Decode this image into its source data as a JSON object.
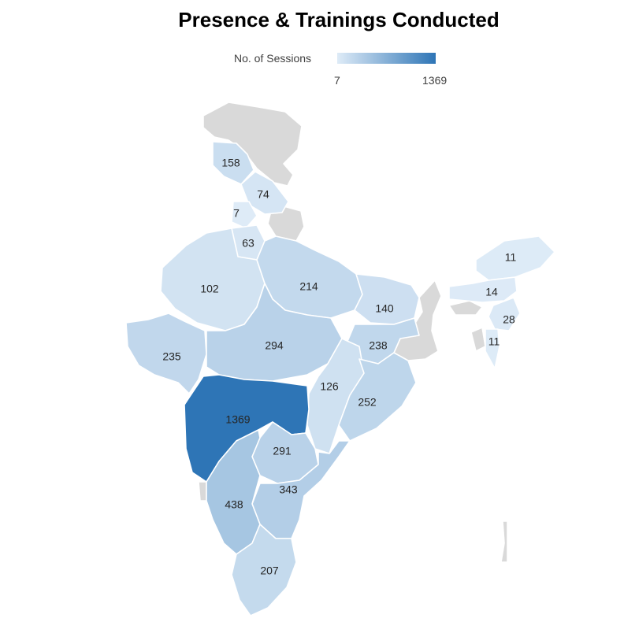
{
  "title": "Presence & Trainings Conducted",
  "legend": {
    "label": "No. of Sessions",
    "min": "7",
    "max": "1369",
    "min_color": "#deebf7",
    "max_color": "#2e75b6"
  },
  "no_data_color": "#d9d9d9",
  "chart_data": {
    "type": "choropleth",
    "metric": "No. of Sessions",
    "range": [
      7,
      1369
    ],
    "values": [
      {
        "label": "158",
        "value": 158
      },
      {
        "label": "74",
        "value": 74
      },
      {
        "label": "7",
        "value": 7
      },
      {
        "label": "63",
        "value": 63
      },
      {
        "label": "102",
        "value": 102
      },
      {
        "label": "214",
        "value": 214
      },
      {
        "label": "140",
        "value": 140
      },
      {
        "label": "11",
        "value": 11
      },
      {
        "label": "14",
        "value": 14
      },
      {
        "label": "28",
        "value": 28
      },
      {
        "label": "11",
        "value": 11
      },
      {
        "label": "235",
        "value": 235
      },
      {
        "label": "294",
        "value": 294
      },
      {
        "label": "238",
        "value": 238
      },
      {
        "label": "126",
        "value": 126
      },
      {
        "label": "252",
        "value": 252
      },
      {
        "label": "1369",
        "value": 1369
      },
      {
        "label": "291",
        "value": 291
      },
      {
        "label": "343",
        "value": 343
      },
      {
        "label": "438",
        "value": 438
      },
      {
        "label": "207",
        "value": 207
      }
    ]
  }
}
